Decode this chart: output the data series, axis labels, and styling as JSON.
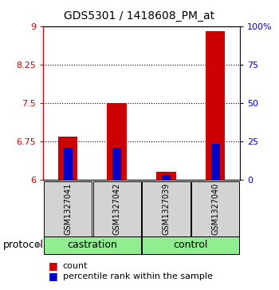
{
  "title": "GDS5301 / 1418608_PM_at",
  "samples": [
    "GSM1327041",
    "GSM1327042",
    "GSM1327039",
    "GSM1327040"
  ],
  "groups": [
    "castration",
    "castration",
    "control",
    "control"
  ],
  "group_spans": [
    [
      "castration",
      0,
      1
    ],
    [
      "control",
      2,
      3
    ]
  ],
  "red_values": [
    6.85,
    7.5,
    6.15,
    8.9
  ],
  "blue_values": [
    6.62,
    6.63,
    6.1,
    6.7
  ],
  "ylim": [
    6.0,
    9.0
  ],
  "yticks_left": [
    6,
    6.75,
    7.5,
    8.25,
    9
  ],
  "yticks_right": [
    0,
    25,
    50,
    75,
    100
  ],
  "right_labels": [
    "0",
    "25",
    "50",
    "75",
    "100%"
  ],
  "bar_width": 0.4,
  "blue_bar_width": 0.18,
  "bg_color": "#ffffff",
  "red_color": "#cc0000",
  "blue_color": "#0000cc",
  "sample_box_color": "#d3d3d3",
  "group_box_color": "#90ee90",
  "legend_red": "count",
  "legend_blue": "percentile rank within the sample",
  "protocol_label": "protocol"
}
